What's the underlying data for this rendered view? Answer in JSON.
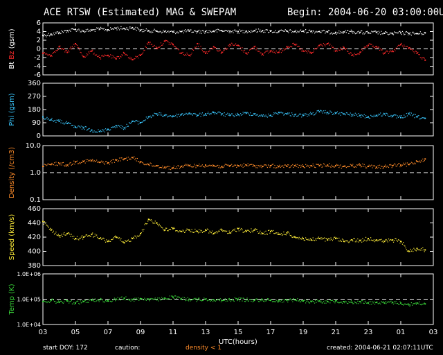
{
  "header": {
    "title": "ACE RTSW (Estimated) MAG & SWEPAM",
    "begin": "Begin: 2004-06-20 03:00:00UTC"
  },
  "footer": {
    "start_doy": "start DOY: 172",
    "caution": "caution:",
    "density_note": "density < 1",
    "created": "created: 2004-06-21 02:07:11UTC"
  },
  "colors": {
    "bt": "#ffffff",
    "bz": "#ff2a2a",
    "phi": "#3ac8ff",
    "density": "#ff8c2a",
    "speed": "#ffee3a",
    "temp": "#3ad83a",
    "frame": "#ffffff",
    "background": "#000000"
  },
  "chart_data": [
    {
      "type": "scatter",
      "panel": "mag",
      "ylim": [
        -6,
        6
      ],
      "yticks": [
        "6",
        "4",
        "2",
        "0",
        "-2",
        "-4",
        "-6"
      ],
      "reference_lines": [
        0
      ],
      "ylabel_parts": [
        {
          "text": "Bt",
          "color": "#ffffff"
        },
        {
          "text": "Bz",
          "color": "#ff2a2a"
        },
        {
          "text": "(gsm)",
          "color": "#ffffff"
        }
      ],
      "series": [
        {
          "name": "Bt",
          "x": [
            0,
            0.5,
            1,
            1.5,
            2,
            2.5,
            3,
            3.5,
            4,
            4.5,
            5,
            5.5,
            6,
            6.5,
            7,
            7.5,
            8,
            8.5,
            9,
            9.5,
            10,
            10.5,
            11,
            11.5,
            12,
            12.5,
            13,
            13.5,
            14,
            14.5,
            15,
            15.5,
            16,
            16.5,
            17,
            17.5,
            18,
            18.5,
            19,
            19.5,
            20,
            20.5,
            21,
            21.5,
            22,
            22.5,
            23,
            23.5
          ],
          "values": [
            3.1,
            3.4,
            3.8,
            4.2,
            4.5,
            4.1,
            4.3,
            4.6,
            4.4,
            4.8,
            4.7,
            4.9,
            4.3,
            4.2,
            4.1,
            4.0,
            3.9,
            4.0,
            4.1,
            4.0,
            4.0,
            4.1,
            4.2,
            4.1,
            4.0,
            4.1,
            4.2,
            4.2,
            4.1,
            4.0,
            4.1,
            4.0,
            4.1,
            4.1,
            4.0,
            3.9,
            3.8,
            3.9,
            4.0,
            3.8,
            3.7,
            3.8,
            3.6,
            3.5,
            3.7,
            3.6,
            3.5,
            3.7
          ]
        },
        {
          "name": "Bz",
          "x": [
            0,
            0.5,
            1,
            1.5,
            2,
            2.5,
            3,
            3.5,
            4,
            4.5,
            5,
            5.5,
            6,
            6.5,
            7,
            7.5,
            8,
            8.5,
            9,
            9.5,
            10,
            10.5,
            11,
            11.5,
            12,
            12.5,
            13,
            13.5,
            14,
            14.5,
            15,
            15.5,
            16,
            16.5,
            17,
            17.5,
            18,
            18.5,
            19,
            19.5,
            20,
            20.5,
            21,
            21.5,
            22,
            22.5,
            23,
            23.5
          ],
          "values": [
            -1.0,
            -1.5,
            0.5,
            -0.8,
            1.2,
            -1.8,
            -0.5,
            -2.0,
            -1.5,
            -2.3,
            -1.0,
            -2.5,
            -1.5,
            1.5,
            0.2,
            1.8,
            1.0,
            -1.0,
            -1.5,
            1.2,
            -1.0,
            0.5,
            -0.8,
            1.0,
            0.8,
            -1.0,
            0.5,
            -1.2,
            -0.5,
            -0.8,
            0.5,
            1.0,
            -0.5,
            -1.0,
            0.8,
            1.2,
            -0.5,
            0.3,
            -1.5,
            -0.8,
            0.8,
            0.5,
            -1.0,
            -0.5,
            1.0,
            0.2,
            -1.0,
            -2.6
          ]
        }
      ]
    },
    {
      "type": "scatter",
      "panel": "phi",
      "ylabel": "Phi (gsm)",
      "ylim": [
        0,
        360
      ],
      "yticks": [
        "360",
        "270",
        "180",
        "90",
        "0"
      ],
      "series": [
        {
          "x": [
            0,
            0.5,
            1,
            1.5,
            2,
            2.5,
            3,
            3.5,
            4,
            4.5,
            5,
            5.5,
            6,
            6.5,
            7,
            7.5,
            8,
            8.5,
            9,
            9.5,
            10,
            10.5,
            11,
            11.5,
            12,
            12.5,
            13,
            13.5,
            14,
            14.5,
            15,
            15.5,
            16,
            16.5,
            17,
            17.5,
            18,
            18.5,
            19,
            19.5,
            20,
            20.5,
            21,
            21.5,
            22,
            22.5,
            23,
            23.5
          ],
          "values": [
            130,
            110,
            100,
            85,
            60,
            55,
            40,
            30,
            45,
            70,
            55,
            100,
            90,
            130,
            150,
            140,
            135,
            145,
            155,
            140,
            150,
            160,
            150,
            140,
            145,
            155,
            150,
            135,
            140,
            160,
            150,
            145,
            140,
            150,
            165,
            160,
            155,
            150,
            145,
            140,
            130,
            140,
            150,
            135,
            125,
            150,
            130,
            120
          ]
        }
      ]
    },
    {
      "type": "scatter",
      "panel": "density",
      "ylabel": "Density (/cm3)",
      "yscale": "log",
      "ylim": [
        0.1,
        10
      ],
      "yticks": [
        "10.0",
        "1.0",
        "0.1"
      ],
      "reference_lines": [
        1
      ],
      "series": [
        {
          "x": [
            0,
            0.5,
            1,
            1.5,
            2,
            2.5,
            3,
            3.5,
            4,
            4.5,
            5,
            5.5,
            6,
            6.5,
            7,
            7.5,
            8,
            8.5,
            9,
            9.5,
            10,
            10.5,
            11,
            11.5,
            12,
            12.5,
            13,
            13.5,
            14,
            14.5,
            15,
            15.5,
            16,
            16.5,
            17,
            17.5,
            18,
            18.5,
            19,
            19.5,
            20,
            20.5,
            21,
            21.5,
            22,
            22.5,
            23,
            23.5
          ],
          "values": [
            1.7,
            2.0,
            2.2,
            1.9,
            2.5,
            2.6,
            2.8,
            2.4,
            2.3,
            2.9,
            3.2,
            3.6,
            2.5,
            2.0,
            1.8,
            1.6,
            1.5,
            1.7,
            1.8,
            1.8,
            1.9,
            1.8,
            1.7,
            1.8,
            1.8,
            1.9,
            1.8,
            1.7,
            1.8,
            1.7,
            1.7,
            1.8,
            1.7,
            1.8,
            1.8,
            1.9,
            1.8,
            1.7,
            1.8,
            1.9,
            1.7,
            1.6,
            1.7,
            1.8,
            1.9,
            2.0,
            2.6,
            3.2
          ]
        }
      ]
    },
    {
      "type": "scatter",
      "panel": "speed",
      "ylabel": "Speed (km/s)",
      "ylim": [
        380,
        460
      ],
      "yticks": [
        "460",
        "440",
        "420",
        "400",
        "380"
      ],
      "series": [
        {
          "x": [
            0,
            0.5,
            1,
            1.5,
            2,
            2.5,
            3,
            3.5,
            4,
            4.5,
            5,
            5.5,
            6,
            6.5,
            7,
            7.5,
            8,
            8.5,
            9,
            9.5,
            10,
            10.5,
            11,
            11.5,
            12,
            12.5,
            13,
            13.5,
            14,
            14.5,
            15,
            15.5,
            16,
            16.5,
            17,
            17.5,
            18,
            18.5,
            19,
            19.5,
            20,
            20.5,
            21,
            21.5,
            22,
            22.5,
            23,
            23.5
          ],
          "values": [
            442,
            430,
            422,
            425,
            418,
            420,
            424,
            418,
            414,
            420,
            412,
            418,
            425,
            445,
            440,
            430,
            432,
            428,
            430,
            428,
            430,
            425,
            430,
            426,
            432,
            428,
            430,
            425,
            428,
            424,
            426,
            420,
            418,
            416,
            418,
            416,
            418,
            414,
            416,
            415,
            418,
            416,
            414,
            416,
            414,
            400,
            404,
            402
          ]
        }
      ]
    },
    {
      "type": "scatter",
      "panel": "temp",
      "ylabel": "Temp (K)",
      "yscale": "log",
      "ylim": [
        10000,
        1000000
      ],
      "yticks": [
        "1.0E+06",
        "1.0E+05",
        "1.0E+04"
      ],
      "reference_lines": [
        100000
      ],
      "series": [
        {
          "x": [
            0,
            0.5,
            1,
            1.5,
            2,
            2.5,
            3,
            3.5,
            4,
            4.5,
            5,
            5.5,
            6,
            6.5,
            7,
            7.5,
            8,
            8.5,
            9,
            9.5,
            10,
            10.5,
            11,
            11.5,
            12,
            12.5,
            13,
            13.5,
            14,
            14.5,
            15,
            15.5,
            16,
            16.5,
            17,
            17.5,
            18,
            18.5,
            19,
            19.5,
            20,
            20.5,
            21,
            21.5,
            22,
            22.5,
            23,
            23.5
          ],
          "values": [
            80000,
            90000,
            75000,
            85000,
            70000,
            80000,
            90000,
            95000,
            85000,
            100000,
            110000,
            95000,
            105000,
            100000,
            95000,
            110000,
            120000,
            105000,
            100000,
            95000,
            100000,
            95000,
            90000,
            95000,
            100000,
            95000,
            90000,
            95000,
            90000,
            85000,
            90000,
            95000,
            85000,
            80000,
            85000,
            80000,
            85000,
            80000,
            75000,
            80000,
            70000,
            75000,
            70000,
            75000,
            70000,
            60000,
            70000,
            65000
          ]
        }
      ]
    }
  ],
  "xaxis": {
    "label": "UTC(hours)",
    "range": [
      0,
      24
    ],
    "ticks": [
      "03",
      "05",
      "07",
      "09",
      "11",
      "13",
      "15",
      "17",
      "19",
      "21",
      "23",
      "01",
      "03"
    ]
  }
}
